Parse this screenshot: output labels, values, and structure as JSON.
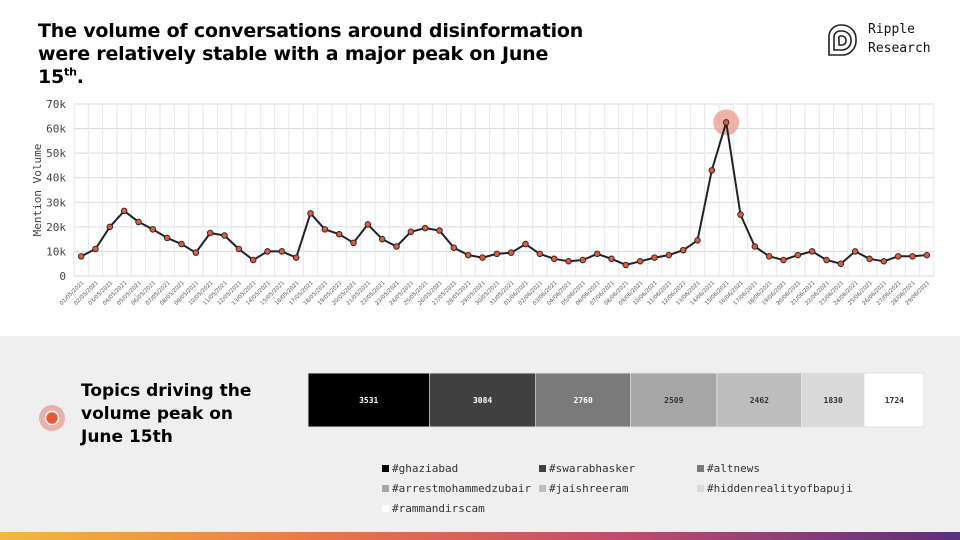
{
  "header": {
    "title_line1": "The volume of conversations around disinformation",
    "title_line2": "were relatively stable with a major peak on June 15",
    "title_sup": "th",
    "title_end": "."
  },
  "logo": {
    "line1": "Ripple",
    "line2": "Research"
  },
  "chart_data": [
    {
      "type": "line",
      "ylabel": "Mention Volume",
      "ylim": [
        0,
        70000
      ],
      "yticks": [
        0,
        10000,
        20000,
        30000,
        40000,
        50000,
        60000,
        70000
      ],
      "ytick_labels": [
        "0",
        "10k",
        "20k",
        "30k",
        "40k",
        "50k",
        "60k",
        "70k"
      ],
      "grid": true,
      "line_color": "#222222",
      "marker_color": "#e4593a",
      "highlight_color": "#e88a7d",
      "highlight_index": 45,
      "x": [
        "01/05/2021",
        "02/05/2021",
        "03/05/2021",
        "04/05/2021",
        "05/05/2021",
        "06/05/2021",
        "07/05/2021",
        "08/05/2021",
        "09/05/2021",
        "10/05/2021",
        "11/05/2021",
        "12/05/2021",
        "13/05/2021",
        "14/05/2021",
        "15/05/2021",
        "16/05/2021",
        "17/05/2021",
        "18/05/2021",
        "19/05/2021",
        "20/05/2021",
        "21/05/2021",
        "22/05/2021",
        "23/05/2021",
        "24/05/2021",
        "25/05/2021",
        "26/05/2021",
        "27/05/2021",
        "28/05/2021",
        "29/05/2021",
        "30/05/2021",
        "31/05/2021",
        "01/06/2021",
        "02/06/2021",
        "03/06/2021",
        "04/06/2021",
        "05/06/2021",
        "06/06/2021",
        "07/06/2021",
        "08/06/2021",
        "09/06/2021",
        "10/06/2021",
        "11/06/2021",
        "12/06/2021",
        "13/06/2021",
        "14/06/2021",
        "15/06/2021",
        "16/06/2021",
        "17/06/2021",
        "18/06/2021",
        "19/06/2021",
        "20/06/2021",
        "21/06/2021",
        "22/06/2021",
        "23/06/2021",
        "24/06/2021",
        "25/06/2021",
        "26/06/2021",
        "27/06/2021",
        "28/06/2021",
        "29/06/2021"
      ],
      "values": [
        8000,
        11000,
        20000,
        26500,
        22000,
        19000,
        15500,
        13000,
        9500,
        17500,
        16500,
        11000,
        6500,
        10000,
        10000,
        7500,
        25500,
        19000,
        17000,
        13500,
        21000,
        15000,
        12000,
        18000,
        19500,
        18500,
        11500,
        8500,
        7500,
        9000,
        9500,
        13000,
        9000,
        7000,
        6000,
        6500,
        9000,
        7000,
        4500,
        6000,
        7500,
        8500,
        10500,
        14500,
        43000,
        62500,
        25000,
        12000,
        8000,
        6500,
        8500,
        10000,
        6500,
        5000,
        10000,
        7000,
        6000,
        8000,
        8000,
        8500
      ]
    },
    {
      "type": "bar",
      "orientation": "stacked-horizontal",
      "categories": [
        "#ghaziabad",
        "#swarabhasker",
        "#altnews",
        "#arrestmohammedzubair",
        "#jaishreeram",
        "#hiddenrealityofbapuji",
        "#rammandirscam"
      ],
      "values": [
        3531,
        3084,
        2760,
        2509,
        2462,
        1830,
        1724
      ],
      "colors": [
        "#000000",
        "#404040",
        "#7a7a7a",
        "#a6a6a6",
        "#bdbdbd",
        "#d9d9d9",
        "#ffffff"
      ],
      "label_colors": [
        "#ffffff",
        "#ffffff",
        "#ffffff",
        "#333333",
        "#333333",
        "#333333",
        "#333333"
      ],
      "legend_placement": "bottom"
    }
  ],
  "topics": {
    "title_line1": "Topics driving the",
    "title_line2": "volume peak on",
    "title_line3": "June 15th"
  }
}
